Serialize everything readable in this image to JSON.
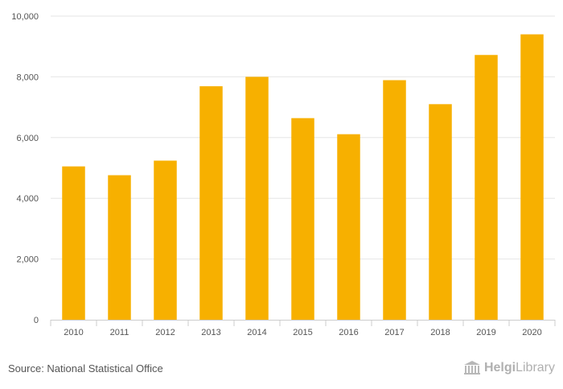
{
  "chart_data": {
    "type": "bar",
    "categories": [
      "2010",
      "2011",
      "2012",
      "2013",
      "2014",
      "2015",
      "2016",
      "2017",
      "2018",
      "2019",
      "2020"
    ],
    "values": [
      5050,
      4760,
      5240,
      7690,
      8000,
      6640,
      6110,
      7890,
      7100,
      8720,
      9400
    ],
    "ylim": [
      0,
      10000
    ],
    "yticks": [
      0,
      2000,
      4000,
      6000,
      8000,
      10000
    ],
    "ytick_labels": [
      "0",
      "2,000",
      "4,000",
      "6,000",
      "8,000",
      "10,000"
    ],
    "title": "",
    "xlabel": "",
    "ylabel": "",
    "grid": true,
    "bar_color": "#f7b000"
  },
  "footer": {
    "source": "Source: National Statistical Office",
    "logo_part1": "Helgi",
    "logo_part2": "Library"
  },
  "colors": {
    "bar": "#f7b000",
    "grid": "#e6e6e6",
    "axis_text": "#555555"
  }
}
